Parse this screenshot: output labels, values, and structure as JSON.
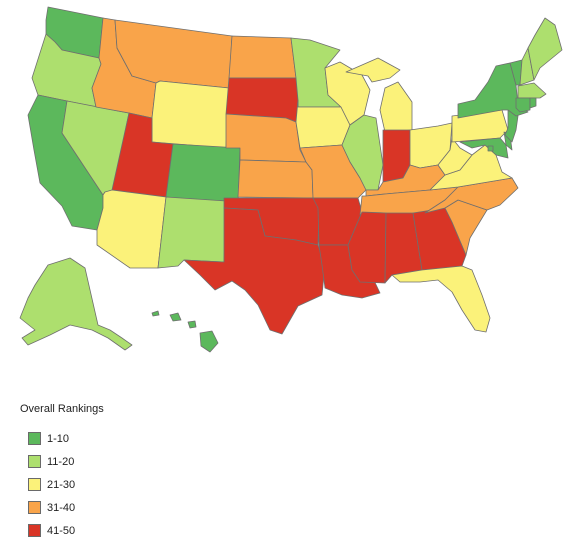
{
  "legend": {
    "title": "Overall Rankings",
    "items": [
      {
        "label": "1-10",
        "color": "#5cb85c",
        "key": "g"
      },
      {
        "label": "11-20",
        "color": "#addf6e",
        "key": "lg"
      },
      {
        "label": "21-30",
        "color": "#fbf27a",
        "key": "y"
      },
      {
        "label": "31-40",
        "color": "#f9a44a",
        "key": "o"
      },
      {
        "label": "41-50",
        "color": "#d93526",
        "key": "r"
      }
    ]
  },
  "states": [
    {
      "code": "WA",
      "tier": "g"
    },
    {
      "code": "OR",
      "tier": "lg"
    },
    {
      "code": "CA",
      "tier": "g"
    },
    {
      "code": "NV",
      "tier": "lg"
    },
    {
      "code": "ID",
      "tier": "o"
    },
    {
      "code": "MT",
      "tier": "o"
    },
    {
      "code": "WY",
      "tier": "y"
    },
    {
      "code": "UT",
      "tier": "r"
    },
    {
      "code": "AZ",
      "tier": "y"
    },
    {
      "code": "CO",
      "tier": "g"
    },
    {
      "code": "NM",
      "tier": "lg"
    },
    {
      "code": "ND",
      "tier": "o"
    },
    {
      "code": "SD",
      "tier": "r"
    },
    {
      "code": "NE",
      "tier": "o"
    },
    {
      "code": "KS",
      "tier": "o"
    },
    {
      "code": "OK",
      "tier": "r"
    },
    {
      "code": "TX",
      "tier": "r"
    },
    {
      "code": "MN",
      "tier": "lg"
    },
    {
      "code": "IA",
      "tier": "y"
    },
    {
      "code": "MO",
      "tier": "o"
    },
    {
      "code": "AR",
      "tier": "r"
    },
    {
      "code": "LA",
      "tier": "r"
    },
    {
      "code": "WI",
      "tier": "y"
    },
    {
      "code": "IL",
      "tier": "lg"
    },
    {
      "code": "MI",
      "tier": "y"
    },
    {
      "code": "IN",
      "tier": "r"
    },
    {
      "code": "OH",
      "tier": "y"
    },
    {
      "code": "KY",
      "tier": "o"
    },
    {
      "code": "TN",
      "tier": "o"
    },
    {
      "code": "MS",
      "tier": "r"
    },
    {
      "code": "AL",
      "tier": "r"
    },
    {
      "code": "GA",
      "tier": "r"
    },
    {
      "code": "FL",
      "tier": "y"
    },
    {
      "code": "SC",
      "tier": "o"
    },
    {
      "code": "NC",
      "tier": "o"
    },
    {
      "code": "VA",
      "tier": "y"
    },
    {
      "code": "WV",
      "tier": "y"
    },
    {
      "code": "PA",
      "tier": "y"
    },
    {
      "code": "NY",
      "tier": "g"
    },
    {
      "code": "VT",
      "tier": "g"
    },
    {
      "code": "NH",
      "tier": "lg"
    },
    {
      "code": "ME",
      "tier": "lg"
    },
    {
      "code": "MA",
      "tier": "lg"
    },
    {
      "code": "CT",
      "tier": "g"
    },
    {
      "code": "RI",
      "tier": "g"
    },
    {
      "code": "NJ",
      "tier": "g"
    },
    {
      "code": "DE",
      "tier": "g"
    },
    {
      "code": "MD",
      "tier": "g"
    },
    {
      "code": "DC",
      "tier": "g"
    },
    {
      "code": "AK",
      "tier": "lg"
    },
    {
      "code": "HI",
      "tier": "g"
    }
  ]
}
